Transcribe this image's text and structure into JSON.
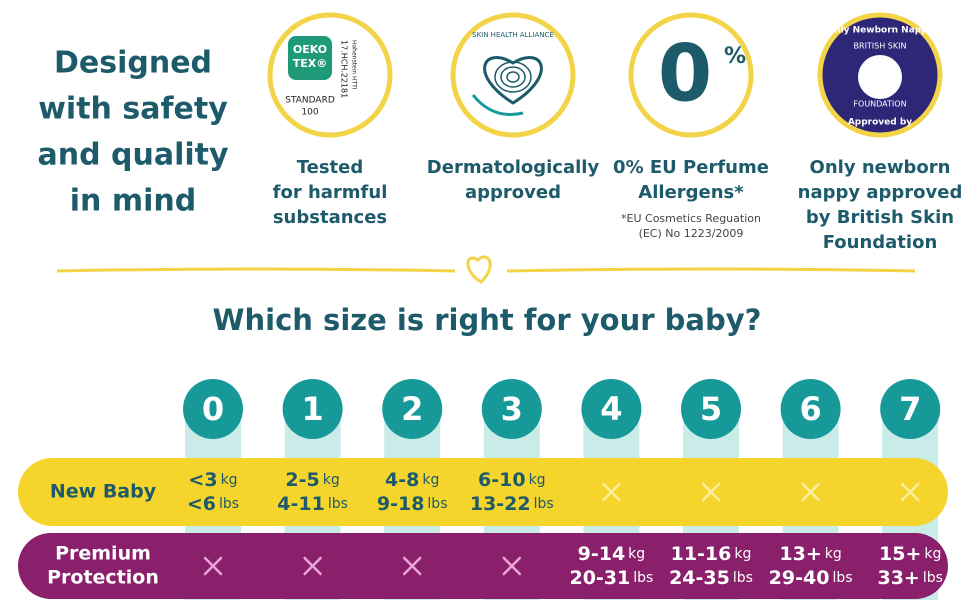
{
  "header": {
    "title_lines": [
      "Designed",
      "with safety",
      "and quality",
      "in mind"
    ]
  },
  "badges": [
    {
      "logo": [
        "OEKO",
        "TEX®",
        "STANDARD",
        "100",
        "17.HCH.22181",
        "Hohenstein HTTI"
      ],
      "label_lines": [
        "Tested",
        "for harmful",
        "substances"
      ]
    },
    {
      "logo": [
        "SKIN HEALTH ALLIANCE"
      ],
      "label_lines": [
        "Dermatologically",
        "approved"
      ]
    },
    {
      "logo": [
        "0",
        "%"
      ],
      "label_lines": [
        "0% EU Perfume",
        "Allergens*"
      ],
      "note_lines": [
        "*EU Cosmetics Reguation",
        "(EC) No 1223/2009"
      ]
    },
    {
      "logo": [
        "Only Newborn Nappy",
        "BRITISH SKIN",
        "FOUNDATION",
        "Approved by"
      ],
      "label_lines": [
        "Only newborn",
        "nappy approved",
        "by British Skin",
        "Foundation"
      ]
    }
  ],
  "size_title": "Which size is right for your baby?",
  "sizes": [
    "0",
    "1",
    "2",
    "3",
    "4",
    "5",
    "6",
    "7"
  ],
  "units": [
    "kg",
    "lbs"
  ],
  "rows": [
    {
      "name_lines": [
        "New Baby"
      ],
      "cells": [
        [
          "<3",
          "<6"
        ],
        [
          "2-5",
          "4-11"
        ],
        [
          "4-8",
          "9-18"
        ],
        [
          "6-10",
          "13-22"
        ],
        null,
        null,
        null,
        null
      ]
    },
    {
      "name_lines": [
        "Premium",
        "Protection"
      ],
      "cells": [
        null,
        null,
        null,
        null,
        [
          "9-14",
          "20-31"
        ],
        [
          "11-16",
          "24-35"
        ],
        [
          "13+",
          "29-40"
        ],
        [
          "15+",
          "33+"
        ]
      ]
    }
  ]
}
